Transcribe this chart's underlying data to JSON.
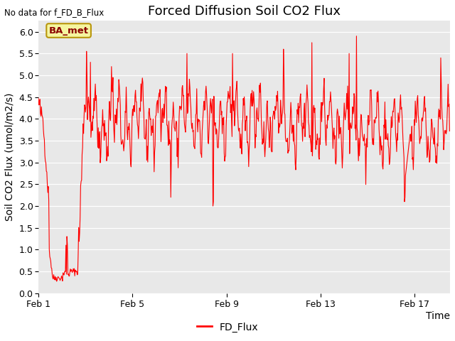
{
  "title": "Forced Diffusion Soil CO2 Flux",
  "xlabel": "Time",
  "ylabel_display": "Soil CO2 Flux (umol/m2/s)",
  "ylim": [
    0.0,
    6.25
  ],
  "yticks": [
    0.0,
    0.5,
    1.0,
    1.5,
    2.0,
    2.5,
    3.0,
    3.5,
    4.0,
    4.5,
    5.0,
    5.5,
    6.0
  ],
  "line_color": "#ff0000",
  "line_width": 0.8,
  "bg_color": "#e8e8e8",
  "fig_color": "#ffffff",
  "no_data_text": "No data for f_FD_B_Flux",
  "ba_met_label": "BA_met",
  "legend_label": "FD_Flux",
  "title_fontsize": 13,
  "axis_label_fontsize": 10,
  "tick_fontsize": 9,
  "xtick_labels": [
    "Feb 1",
    "Feb 5",
    "Feb 9",
    "Feb 13",
    "Feb 17"
  ],
  "xtick_days": [
    1,
    5,
    9,
    13,
    17
  ]
}
